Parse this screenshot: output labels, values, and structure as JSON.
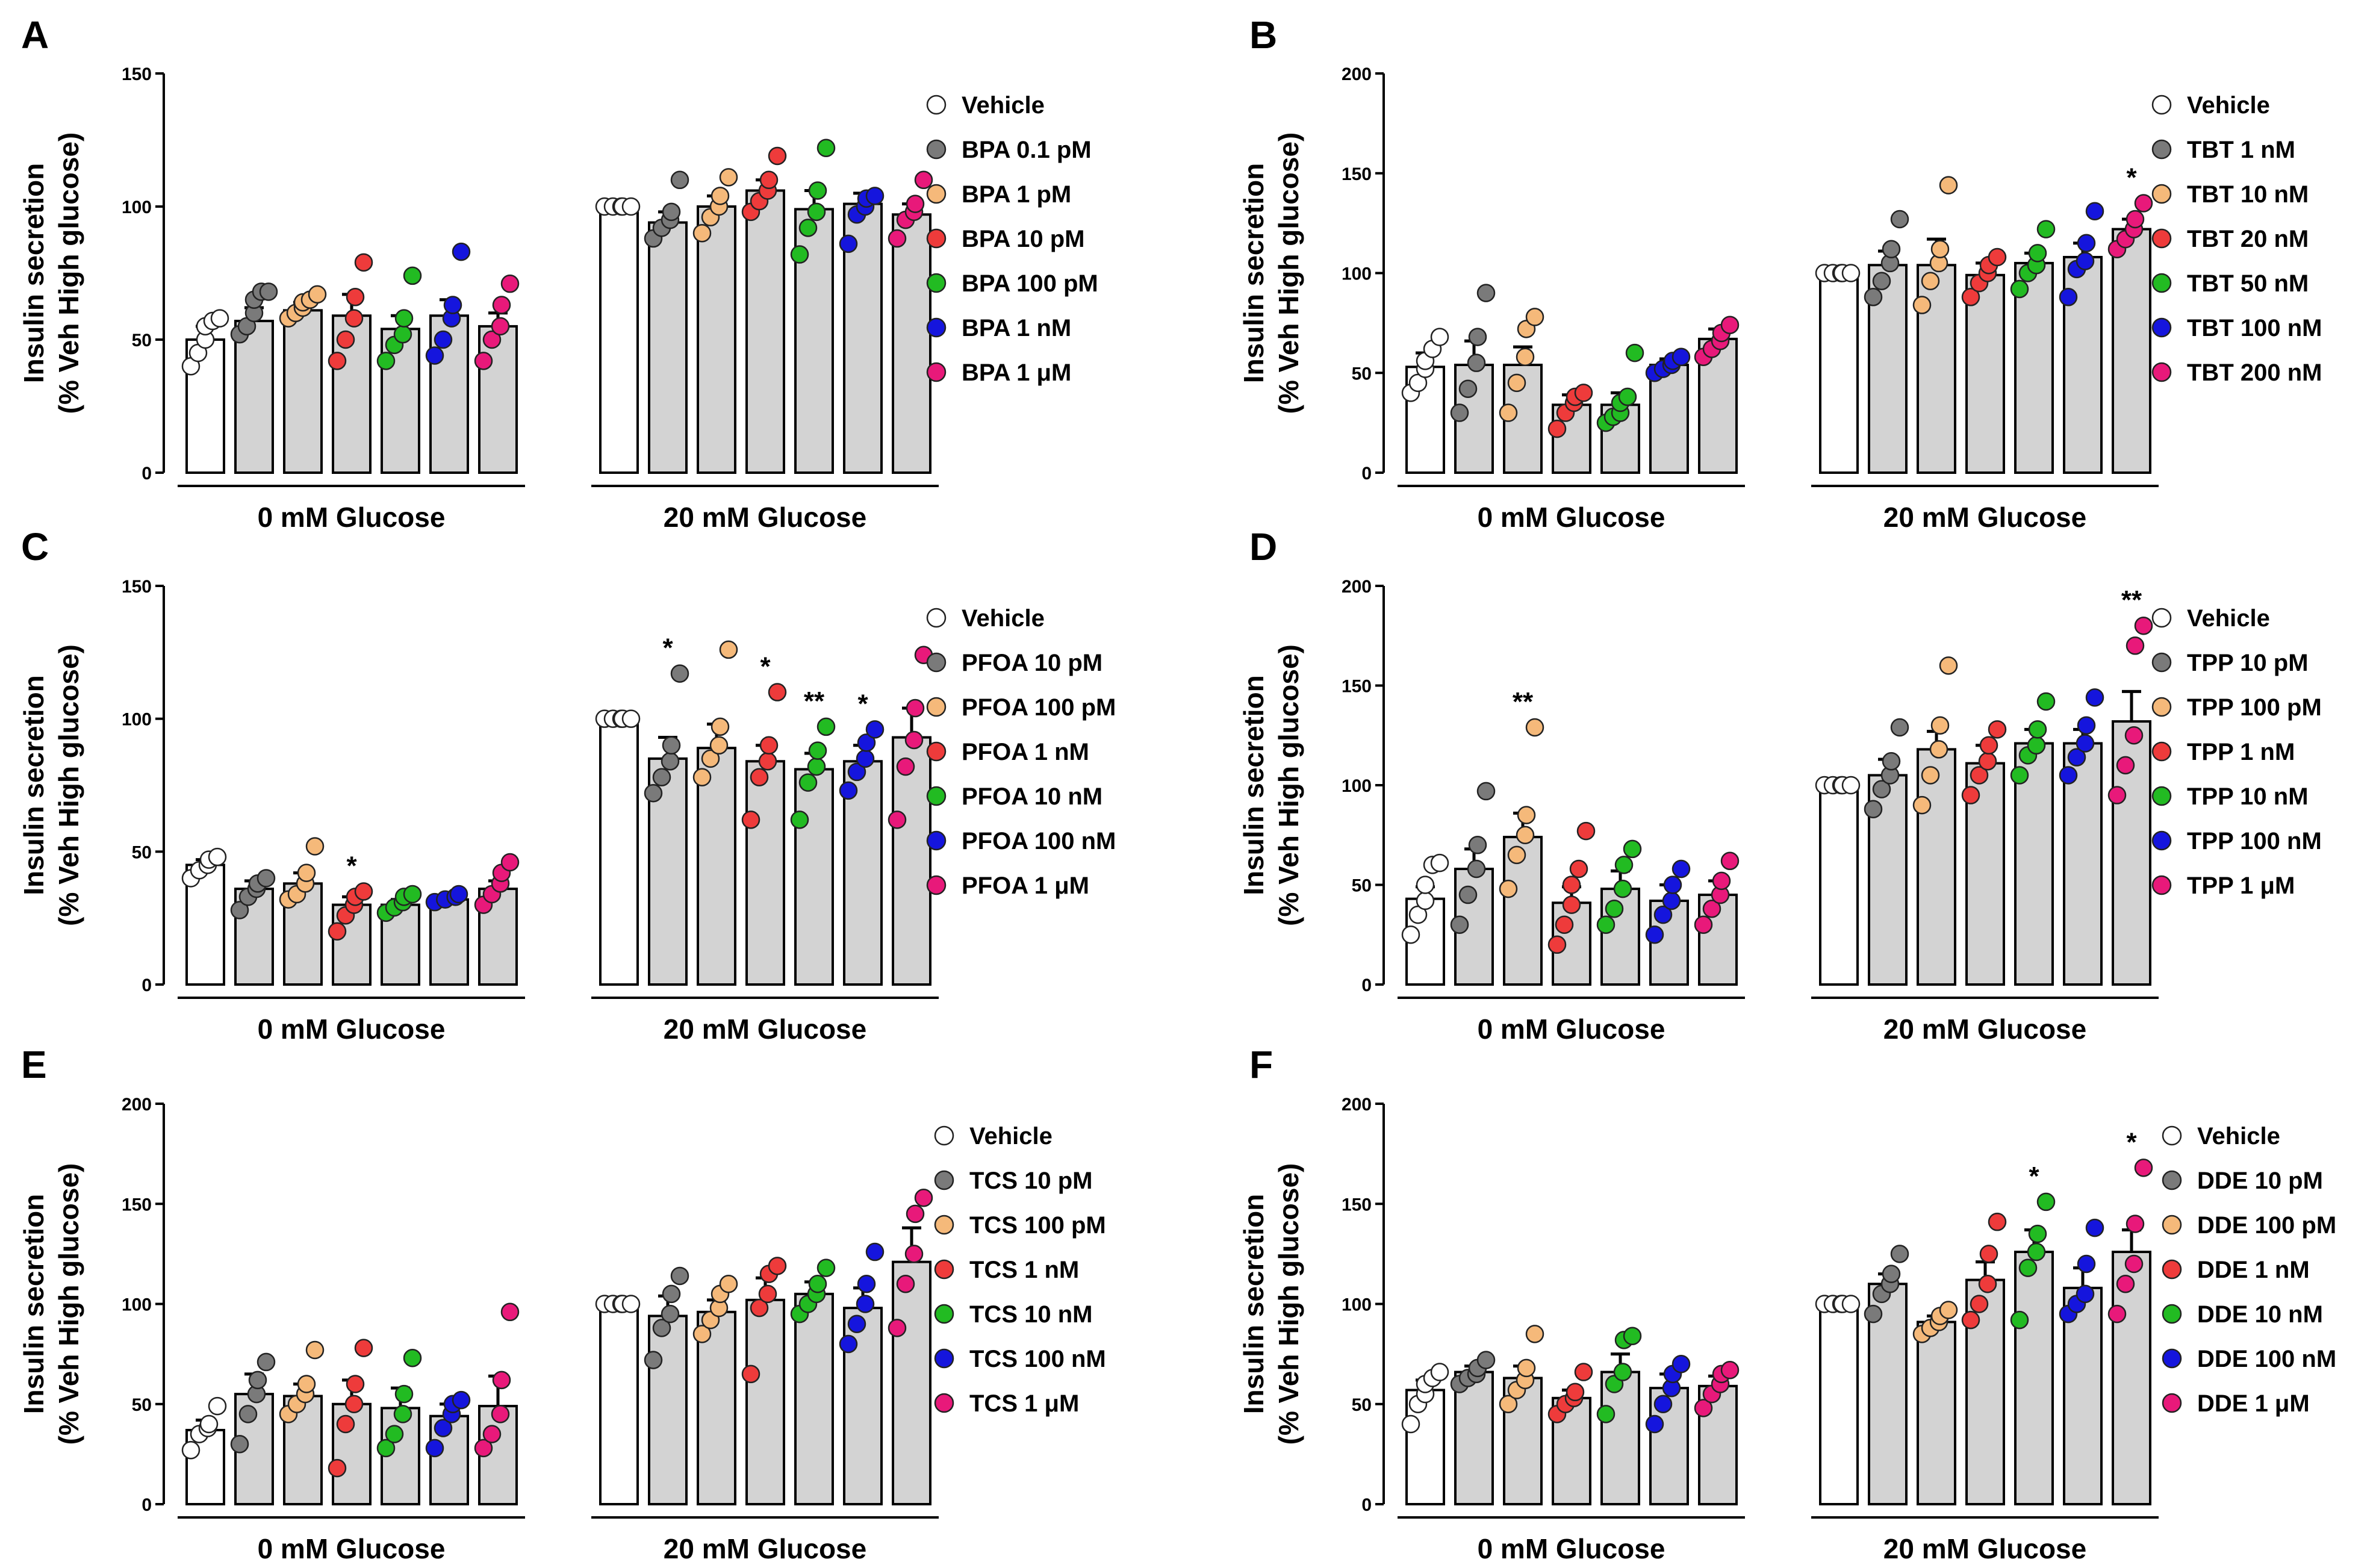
{
  "chart_data": [
    {
      "type": "bar",
      "panel": "A",
      "ylabel": [
        "Insulin secretion",
        "(% Veh High glucose)"
      ],
      "ylim": [
        0,
        150
      ],
      "yticks": [
        0,
        50,
        100,
        150
      ],
      "groups": [
        "0 mM Glucose",
        "20 mM Glucose"
      ],
      "legend": [
        "Vehicle",
        "BPA 0.1 pM",
        "BPA 1 pM",
        "BPA 10 pM",
        "BPA 100 pM",
        "BPA 1 nM",
        "BPA 1 μM"
      ],
      "colors": [
        "#ffffff",
        "#7a7a7a",
        "#f5b97a",
        "#ee3b3b",
        "#22bb22",
        "#1515dd",
        "#e8197a"
      ],
      "means": [
        [
          50,
          57,
          61,
          59,
          54,
          59,
          55
        ],
        [
          100,
          94,
          100,
          106,
          99,
          101,
          97
        ]
      ],
      "errors": [
        [
          5,
          5,
          3,
          8,
          5,
          6,
          5
        ],
        [
          1,
          4,
          4,
          4,
          7,
          4,
          4
        ]
      ],
      "points": [
        [
          [
            40,
            45,
            50,
            55,
            57,
            58
          ],
          [
            52,
            55,
            60,
            65,
            68,
            68
          ],
          [
            58,
            60,
            62,
            64,
            65,
            67
          ],
          [
            42,
            50,
            58,
            66,
            79
          ],
          [
            42,
            48,
            52,
            58,
            74
          ],
          [
            44,
            50,
            58,
            63,
            83
          ],
          [
            42,
            50,
            55,
            63,
            71
          ]
        ],
        [
          [
            100,
            100,
            100,
            100,
            100
          ],
          [
            88,
            92,
            95,
            98,
            110
          ],
          [
            90,
            96,
            100,
            104,
            111
          ],
          [
            98,
            102,
            106,
            110,
            119
          ],
          [
            82,
            92,
            98,
            106,
            122
          ],
          [
            86,
            97,
            100,
            103,
            104
          ],
          [
            88,
            95,
            98,
            101,
            110
          ]
        ]
      ],
      "stars": [
        [
          "",
          "",
          "",
          "",
          "",
          "",
          ""
        ],
        [
          "",
          "",
          "",
          "",
          "",
          "",
          ""
        ]
      ]
    },
    {
      "type": "bar",
      "panel": "B",
      "ylabel": [
        "Insulin secretion",
        "(% Veh High glucose)"
      ],
      "ylim": [
        0,
        200
      ],
      "yticks": [
        0,
        50,
        100,
        150,
        200
      ],
      "groups": [
        "0 mM Glucose",
        "20 mM Glucose"
      ],
      "legend": [
        "Vehicle",
        "TBT 1 nM",
        "TBT 10 nM",
        "TBT 20 nM",
        "TBT 50 nM",
        "TBT 100 nM",
        "TBT 200 nM"
      ],
      "colors": [
        "#ffffff",
        "#7a7a7a",
        "#f5b97a",
        "#ee3b3b",
        "#22bb22",
        "#1515dd",
        "#e8197a"
      ],
      "means": [
        [
          53,
          54,
          54,
          34,
          34,
          54,
          67
        ],
        [
          100,
          104,
          104,
          99,
          105,
          108,
          122
        ]
      ],
      "errors": [
        [
          7,
          12,
          9,
          5,
          6,
          3,
          5
        ],
        [
          2,
          7,
          13,
          6,
          5,
          7,
          5
        ]
      ],
      "points": [
        [
          [
            40,
            45,
            52,
            56,
            62,
            68
          ],
          [
            30,
            42,
            55,
            68,
            90
          ],
          [
            30,
            45,
            58,
            72,
            78
          ],
          [
            22,
            30,
            35,
            38,
            40
          ],
          [
            25,
            28,
            30,
            35,
            38,
            60
          ],
          [
            50,
            52,
            54,
            56,
            58
          ],
          [
            58,
            62,
            66,
            70,
            74
          ]
        ],
        [
          [
            100,
            100,
            100,
            100,
            100
          ],
          [
            88,
            96,
            105,
            112,
            127
          ],
          [
            84,
            96,
            105,
            112,
            144
          ],
          [
            88,
            95,
            100,
            104,
            108
          ],
          [
            92,
            100,
            104,
            110,
            122
          ],
          [
            88,
            102,
            106,
            115,
            131
          ],
          [
            112,
            117,
            122,
            127,
            135
          ]
        ]
      ],
      "stars": [
        [
          "",
          "",
          "",
          "",
          "",
          "",
          ""
        ],
        [
          "",
          "",
          "",
          "",
          "",
          "",
          "*"
        ]
      ]
    },
    {
      "type": "bar",
      "panel": "C",
      "ylabel": [
        "Insulin secretion",
        "(% Veh High glucose)"
      ],
      "ylim": [
        0,
        150
      ],
      "yticks": [
        0,
        50,
        100,
        150
      ],
      "groups": [
        "0 mM Glucose",
        "20 mM Glucose"
      ],
      "legend": [
        "Vehicle",
        "PFOA 10 pM",
        "PFOA 100 pM",
        "PFOA 1 nM",
        "PFOA 10 nM",
        "PFOA 100 nM",
        "PFOA 1 μM"
      ],
      "colors": [
        "#ffffff",
        "#7a7a7a",
        "#f5b97a",
        "#ee3b3b",
        "#22bb22",
        "#1515dd",
        "#e8197a"
      ],
      "means": [
        [
          45,
          36,
          38,
          30,
          30,
          32,
          36
        ],
        [
          100,
          85,
          89,
          84,
          81,
          84,
          93
        ]
      ],
      "errors": [
        [
          2,
          3,
          4,
          3,
          2,
          1,
          3
        ],
        [
          0,
          8,
          9,
          6,
          6,
          6,
          11
        ]
      ],
      "points": [
        [
          [
            40,
            43,
            45,
            47,
            48
          ],
          [
            28,
            33,
            36,
            38,
            40
          ],
          [
            32,
            34,
            38,
            42,
            52
          ],
          [
            20,
            26,
            30,
            33,
            35
          ],
          [
            27,
            29,
            31,
            33,
            34
          ],
          [
            31,
            32,
            33,
            34
          ],
          [
            30,
            34,
            38,
            42,
            46
          ]
        ],
        [
          [
            100,
            100,
            100,
            100,
            100
          ],
          [
            72,
            78,
            84,
            90,
            117
          ],
          [
            78,
            85,
            90,
            97,
            126
          ],
          [
            62,
            78,
            84,
            90,
            110
          ],
          [
            62,
            76,
            82,
            88,
            97
          ],
          [
            73,
            80,
            85,
            91,
            96
          ],
          [
            62,
            82,
            92,
            104,
            124
          ]
        ]
      ],
      "stars": [
        [
          "",
          "",
          "",
          "*",
          "",
          "",
          ""
        ],
        [
          "",
          "*",
          "",
          "*",
          "**",
          "*",
          ""
        ]
      ]
    },
    {
      "type": "bar",
      "panel": "D",
      "ylabel": [
        "Insulin secretion",
        "(% Veh High glucose)"
      ],
      "ylim": [
        0,
        200
      ],
      "yticks": [
        0,
        50,
        100,
        150,
        200
      ],
      "groups": [
        "0 mM Glucose",
        "20 mM Glucose"
      ],
      "legend": [
        "Vehicle",
        "TPP 10 pM",
        "TPP 100 pM",
        "TPP 1 nM",
        "TPP 10 nM",
        "TPP 100 nM",
        "TPP 1 μM"
      ],
      "colors": [
        "#ffffff",
        "#7a7a7a",
        "#f5b97a",
        "#ee3b3b",
        "#22bb22",
        "#1515dd",
        "#e8197a"
      ],
      "means": [
        [
          43,
          58,
          74,
          41,
          48,
          42,
          45
        ],
        [
          100,
          105,
          118,
          111,
          121,
          121,
          132
        ]
      ],
      "errors": [
        [
          6,
          10,
          12,
          8,
          9,
          8,
          7
        ],
        [
          0,
          8,
          9,
          9,
          7,
          7,
          15
        ]
      ],
      "points": [
        [
          [
            25,
            35,
            42,
            50,
            60,
            61
          ],
          [
            30,
            45,
            58,
            70,
            97
          ],
          [
            48,
            65,
            75,
            85,
            129
          ],
          [
            20,
            30,
            40,
            50,
            58,
            77
          ],
          [
            30,
            38,
            48,
            60,
            68
          ],
          [
            25,
            35,
            42,
            50,
            58
          ],
          [
            30,
            38,
            45,
            52,
            62
          ]
        ],
        [
          [
            100,
            100,
            100,
            100,
            100
          ],
          [
            88,
            98,
            105,
            112,
            129
          ],
          [
            90,
            105,
            118,
            130,
            160
          ],
          [
            95,
            105,
            112,
            120,
            128
          ],
          [
            105,
            115,
            120,
            128,
            142
          ],
          [
            105,
            114,
            121,
            130,
            144
          ],
          [
            95,
            110,
            125,
            170,
            180
          ]
        ]
      ],
      "stars": [
        [
          "",
          "",
          "**",
          "",
          "",
          "",
          ""
        ],
        [
          "",
          "",
          "",
          "",
          "",
          "",
          "**"
        ]
      ]
    },
    {
      "type": "bar",
      "panel": "E",
      "ylabel": [
        "Insulin secretion",
        "(% Veh High glucose)"
      ],
      "ylim": [
        0,
        200
      ],
      "yticks": [
        0,
        50,
        100,
        150,
        200
      ],
      "groups": [
        "0 mM Glucose",
        "20 mM Glucose"
      ],
      "legend": [
        "Vehicle",
        "TCS 10 pM",
        "TCS 100 pM",
        "TCS 1 nM",
        "TCS 10 nM",
        "TCS 100 nM",
        "TCS 1 μM"
      ],
      "colors": [
        "#ffffff",
        "#7a7a7a",
        "#f5b97a",
        "#ee3b3b",
        "#22bb22",
        "#1515dd",
        "#e8197a"
      ],
      "means": [
        [
          37,
          55,
          54,
          50,
          48,
          44,
          49
        ],
        [
          100,
          94,
          96,
          102,
          105,
          98,
          121
        ]
      ],
      "errors": [
        [
          5,
          10,
          6,
          12,
          10,
          6,
          15
        ],
        [
          0,
          10,
          6,
          11,
          6,
          10,
          17
        ]
      ],
      "points": [
        [
          [
            27,
            35,
            38,
            40,
            49
          ],
          [
            30,
            45,
            55,
            62,
            71
          ],
          [
            45,
            50,
            55,
            60,
            77
          ],
          [
            18,
            40,
            50,
            60,
            78
          ],
          [
            28,
            35,
            45,
            55,
            73
          ],
          [
            28,
            38,
            45,
            50,
            52
          ],
          [
            28,
            35,
            45,
            62,
            96
          ]
        ],
        [
          [
            100,
            100,
            100,
            100,
            100
          ],
          [
            72,
            88,
            95,
            105,
            114
          ],
          [
            85,
            92,
            98,
            105,
            110
          ],
          [
            65,
            98,
            105,
            115,
            119
          ],
          [
            95,
            100,
            105,
            110,
            118
          ],
          [
            80,
            90,
            100,
            110,
            126
          ],
          [
            88,
            110,
            125,
            145,
            153
          ]
        ]
      ],
      "stars": [
        [
          "",
          "",
          "",
          "",
          "",
          "",
          ""
        ],
        [
          "",
          "",
          "",
          "",
          "",
          "",
          ""
        ]
      ]
    },
    {
      "type": "bar",
      "panel": "F",
      "ylabel": [
        "Insulin secretion",
        "(% Veh High glucose)"
      ],
      "ylim": [
        0,
        200
      ],
      "yticks": [
        0,
        50,
        100,
        150,
        200
      ],
      "groups": [
        "0 mM Glucose",
        "20 mM Glucose"
      ],
      "legend": [
        "Vehicle",
        "DDE 10 pM",
        "DDE 100 pM",
        "DDE 1 nM",
        "DDE 10 nM",
        "DDE 100 nM",
        "DDE 1 μM"
      ],
      "colors": [
        "#ffffff",
        "#7a7a7a",
        "#f5b97a",
        "#ee3b3b",
        "#22bb22",
        "#1515dd",
        "#e8197a"
      ],
      "means": [
        [
          57,
          66,
          63,
          53,
          66,
          58,
          59
        ],
        [
          100,
          110,
          91,
          112,
          126,
          108,
          126
        ]
      ],
      "errors": [
        [
          5,
          3,
          6,
          4,
          9,
          7,
          5
        ],
        [
          1,
          5,
          3,
          9,
          11,
          10,
          11
        ]
      ],
      "points": [
        [
          [
            40,
            50,
            55,
            60,
            63,
            66
          ],
          [
            60,
            63,
            65,
            68,
            72
          ],
          [
            50,
            57,
            62,
            68,
            85
          ],
          [
            45,
            50,
            53,
            56,
            66
          ],
          [
            45,
            60,
            66,
            82,
            84
          ],
          [
            40,
            50,
            58,
            65,
            70
          ],
          [
            48,
            55,
            60,
            65,
            67
          ]
        ],
        [
          [
            100,
            100,
            100,
            100,
            100
          ],
          [
            95,
            105,
            110,
            115,
            125
          ],
          [
            85,
            88,
            91,
            94,
            97
          ],
          [
            92,
            100,
            110,
            125,
            141
          ],
          [
            92,
            118,
            126,
            135,
            151
          ],
          [
            95,
            100,
            105,
            120,
            138
          ],
          [
            95,
            110,
            120,
            140,
            168
          ]
        ]
      ],
      "stars": [
        [
          "",
          "",
          "",
          "",
          "",
          "",
          ""
        ],
        [
          "",
          "",
          "",
          "",
          "*",
          "",
          "*"
        ]
      ]
    }
  ]
}
